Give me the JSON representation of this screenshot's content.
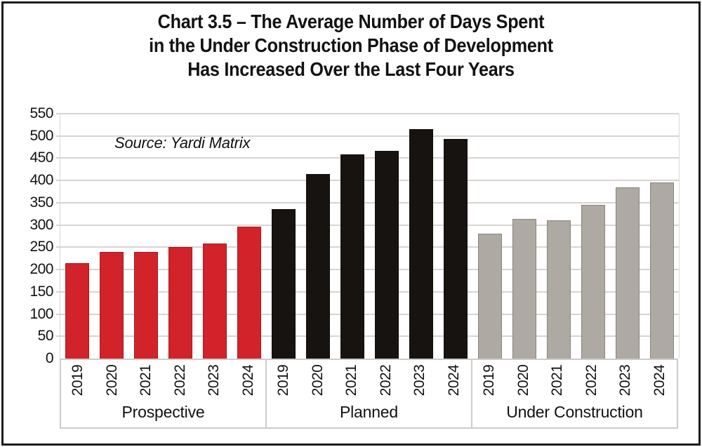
{
  "title": {
    "lines": [
      "Chart 3.5 – The Average Number of Days Spent",
      "in the Under Construction Phase of Development",
      "Has Increased Over the Last Four Years"
    ]
  },
  "source_note": "Source: Yardi Matrix",
  "chart_data": {
    "type": "bar",
    "title": "Chart 3.5 – The Average Number of Days Spent in the Under Construction Phase of Development Has Increased Over the Last Four Years",
    "source": "Source: Yardi Matrix",
    "ylim": [
      0,
      550
    ],
    "ytick_step": 50,
    "yticks": [
      0,
      50,
      100,
      150,
      200,
      250,
      300,
      350,
      400,
      450,
      500,
      550
    ],
    "grid": true,
    "legend_position": "none",
    "xlabel": "",
    "ylabel": "",
    "categories": [
      "2019",
      "2020",
      "2021",
      "2022",
      "2023",
      "2024"
    ],
    "series": [
      {
        "name": "Prospective",
        "color": "#d2232a",
        "values": [
          215,
          240,
          240,
          250,
          258,
          296
        ]
      },
      {
        "name": "Planned",
        "color": "#171310",
        "values": [
          336,
          415,
          458,
          466,
          515,
          493
        ]
      },
      {
        "name": "Under Construction",
        "color": "#aeaaa3",
        "values": [
          280,
          314,
          310,
          345,
          384,
          396
        ]
      }
    ]
  }
}
